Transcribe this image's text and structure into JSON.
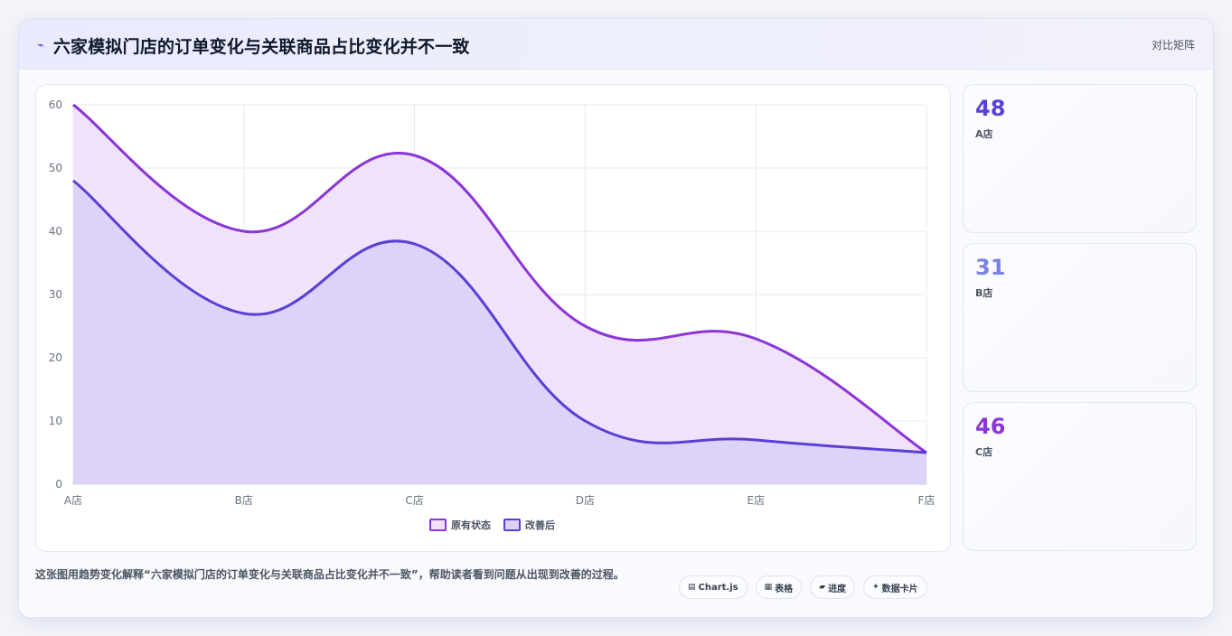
{
  "header": {
    "icon": "chart-line-icon",
    "title": "六家模拟门店的订单变化与关联商品占比变化并不一致",
    "right_label": "对比矩阵"
  },
  "chart_data": {
    "type": "area",
    "categories": [
      "A店",
      "B店",
      "C店",
      "D店",
      "E店",
      "F店"
    ],
    "series": [
      {
        "name": "原有状态",
        "values": [
          60,
          40,
          52,
          25,
          23,
          5
        ],
        "color": "#8b35d6",
        "fill": "#efe2fa"
      },
      {
        "name": "改善后",
        "values": [
          48,
          27,
          38,
          10,
          7,
          5
        ],
        "color": "#5b3fd4",
        "fill": "#dcd0f8"
      }
    ],
    "ylim": [
      0,
      60
    ],
    "yticks": [
      0,
      10,
      20,
      30,
      40,
      50,
      60
    ],
    "grid": true,
    "legend_position": "bottom"
  },
  "stats": [
    {
      "value": "48",
      "label": "A店",
      "color": "#5b3fd4"
    },
    {
      "value": "31",
      "label": "B店",
      "color": "#7b82e3"
    },
    {
      "value": "46",
      "label": "C店",
      "color": "#8b35d6"
    }
  ],
  "footer": {
    "text": "这张图用趋势变化解释“六家模拟门店的订单变化与关联商品占比变化并不一致”，帮助读者看到问题从出现到改善的过程。",
    "tags": [
      {
        "icon": "chart-icon",
        "label": "Chart.js"
      },
      {
        "icon": "table-icon",
        "label": "表格"
      },
      {
        "icon": "progress-icon",
        "label": "进度"
      },
      {
        "icon": "sparkle-icon",
        "label": "数据卡片"
      }
    ]
  }
}
